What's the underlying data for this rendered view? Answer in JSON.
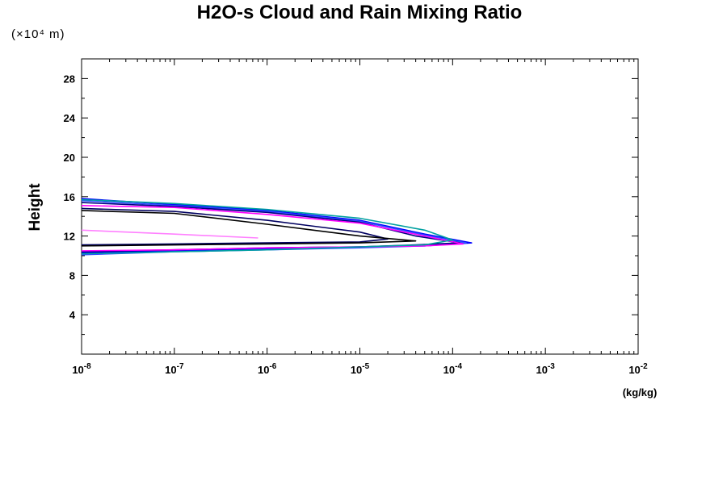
{
  "chart_data": {
    "type": "line",
    "title": "H2O-s Cloud and Rain Mixing Ratio",
    "y_unit": "(×10⁴ m)",
    "ylabel": "Height",
    "xlabel": "(kg/kg)",
    "xscale": "log",
    "xlim": [
      1e-08,
      0.01
    ],
    "ylim": [
      0,
      30
    ],
    "x_ticks": [
      {
        "base": "10",
        "exp": "-8"
      },
      {
        "base": "10",
        "exp": "-7"
      },
      {
        "base": "10",
        "exp": "-6"
      },
      {
        "base": "10",
        "exp": "-5"
      },
      {
        "base": "10",
        "exp": "-4"
      },
      {
        "base": "10",
        "exp": "-3"
      },
      {
        "base": "10",
        "exp": "-2"
      }
    ],
    "y_ticks": [
      4,
      8,
      12,
      16,
      20,
      24,
      28
    ],
    "grid": false,
    "series": [
      {
        "color": "#0000ff",
        "points": [
          [
            1e-08,
            15.8
          ],
          [
            1e-07,
            15.2
          ],
          [
            1e-06,
            14.6
          ],
          [
            1e-05,
            13.6
          ],
          [
            5e-05,
            12.2
          ],
          [
            0.00016,
            11.3
          ],
          [
            5e-05,
            11.0
          ],
          [
            1e-05,
            10.9
          ],
          [
            1e-06,
            10.7
          ],
          [
            1e-07,
            10.5
          ],
          [
            1e-08,
            10.3
          ]
        ]
      },
      {
        "color": "#3050ff",
        "points": [
          [
            1e-08,
            15.6
          ],
          [
            1e-07,
            15.1
          ],
          [
            1e-06,
            14.5
          ],
          [
            1e-05,
            13.5
          ],
          [
            5e-05,
            12.1
          ],
          [
            0.00014,
            11.3
          ],
          [
            5e-05,
            11.0
          ],
          [
            1e-05,
            10.8
          ],
          [
            1e-06,
            10.6
          ],
          [
            1e-07,
            10.4
          ],
          [
            1e-08,
            10.1
          ]
        ]
      },
      {
        "color": "#000080",
        "points": [
          [
            1e-08,
            15.4
          ],
          [
            1e-07,
            15.0
          ],
          [
            1e-06,
            14.4
          ],
          [
            1e-05,
            13.4
          ],
          [
            4e-05,
            12.0
          ],
          [
            0.00012,
            11.3
          ],
          [
            4e-05,
            11.1
          ],
          [
            1e-05,
            10.9
          ],
          [
            1e-06,
            10.8
          ],
          [
            1e-07,
            10.6
          ],
          [
            1e-08,
            10.4
          ]
        ]
      },
      {
        "color": "#ff00ff",
        "points": [
          [
            1e-08,
            15.1
          ],
          [
            1e-07,
            14.9
          ],
          [
            1e-06,
            14.2
          ],
          [
            1e-05,
            13.3
          ],
          [
            5e-05,
            12.0
          ],
          [
            0.00013,
            11.2
          ],
          [
            5e-05,
            11.0
          ],
          [
            1e-05,
            10.9
          ],
          [
            1e-06,
            10.8
          ],
          [
            1e-07,
            10.6
          ],
          [
            1e-08,
            10.5
          ]
        ]
      },
      {
        "color": "#00a0a0",
        "points": [
          [
            1e-08,
            15.7
          ],
          [
            1e-07,
            15.3
          ],
          [
            1e-06,
            14.7
          ],
          [
            1e-05,
            13.8
          ],
          [
            5e-05,
            12.6
          ],
          [
            0.0001,
            11.6
          ],
          [
            5e-05,
            11.1
          ],
          [
            1e-05,
            10.9
          ],
          [
            1e-06,
            10.6
          ],
          [
            1e-07,
            10.4
          ],
          [
            1e-08,
            10.2
          ]
        ]
      },
      {
        "color": "#000060",
        "points": [
          [
            1e-08,
            14.8
          ],
          [
            1e-07,
            14.5
          ],
          [
            1e-06,
            13.6
          ],
          [
            1e-05,
            12.4
          ],
          [
            2e-05,
            11.7
          ],
          [
            1e-05,
            11.4
          ],
          [
            1e-06,
            11.3
          ],
          [
            1e-07,
            11.2
          ],
          [
            1e-08,
            11.1
          ]
        ]
      },
      {
        "color": "#ff80ff",
        "points": [
          [
            1e-08,
            12.6
          ],
          [
            1e-07,
            12.2
          ],
          [
            8e-07,
            11.8
          ]
        ]
      },
      {
        "color": "#000000",
        "points": [
          [
            1e-08,
            14.6
          ],
          [
            2e-08,
            14.5
          ],
          [
            1e-07,
            14.3
          ],
          [
            1e-06,
            13.2
          ],
          [
            1e-05,
            12.0
          ],
          [
            4e-05,
            11.5
          ],
          [
            1e-05,
            11.3
          ],
          [
            1e-06,
            11.2
          ],
          [
            1e-08,
            11.0
          ]
        ]
      }
    ]
  }
}
